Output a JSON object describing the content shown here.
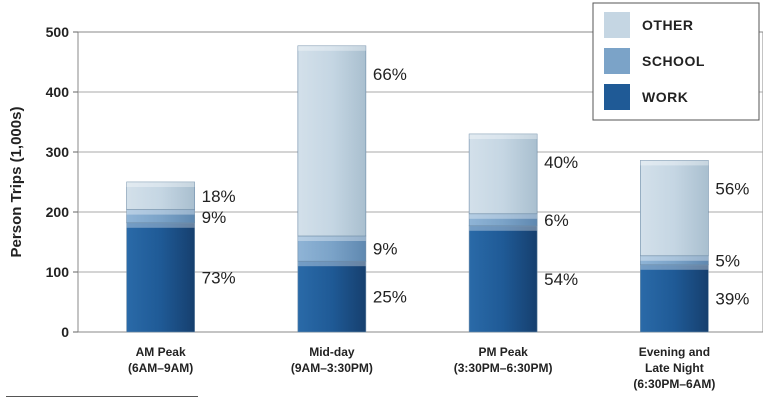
{
  "chart_data": {
    "type": "bar",
    "stacked": true,
    "ylabel": "Person Trips (1,000s)",
    "ylim": [
      0,
      500
    ],
    "yticks": [
      "0",
      "100",
      "200",
      "300",
      "400",
      "500"
    ],
    "grid": true,
    "legend_position": "top-right",
    "categories": [
      [
        "AM Peak",
        "(6AM–9AM)"
      ],
      [
        "Mid-day",
        "(9AM–3:30PM)"
      ],
      [
        "PM Peak",
        "(3:30PM–6:30PM)"
      ],
      [
        "Evening and",
        "Late Night",
        "(6:30PM–6AM)"
      ]
    ],
    "series": [
      {
        "name": "WORK",
        "color": "#1f5a96",
        "values": [
          182,
          118,
          177,
          112
        ],
        "labels": [
          "73%",
          "25%",
          "54%",
          "39%"
        ]
      },
      {
        "name": "SCHOOL",
        "color": "#7ba3c8",
        "values": [
          22,
          42,
          20,
          15
        ],
        "labels": [
          "9%",
          "9%",
          "6%",
          "5%"
        ]
      },
      {
        "name": "OTHER",
        "color": "#c5d6e3",
        "values": [
          46,
          317,
          133,
          159
        ],
        "labels": [
          "18%",
          "66%",
          "40%",
          "56%"
        ]
      }
    ],
    "legend_order": [
      "OTHER",
      "SCHOOL",
      "WORK"
    ]
  }
}
